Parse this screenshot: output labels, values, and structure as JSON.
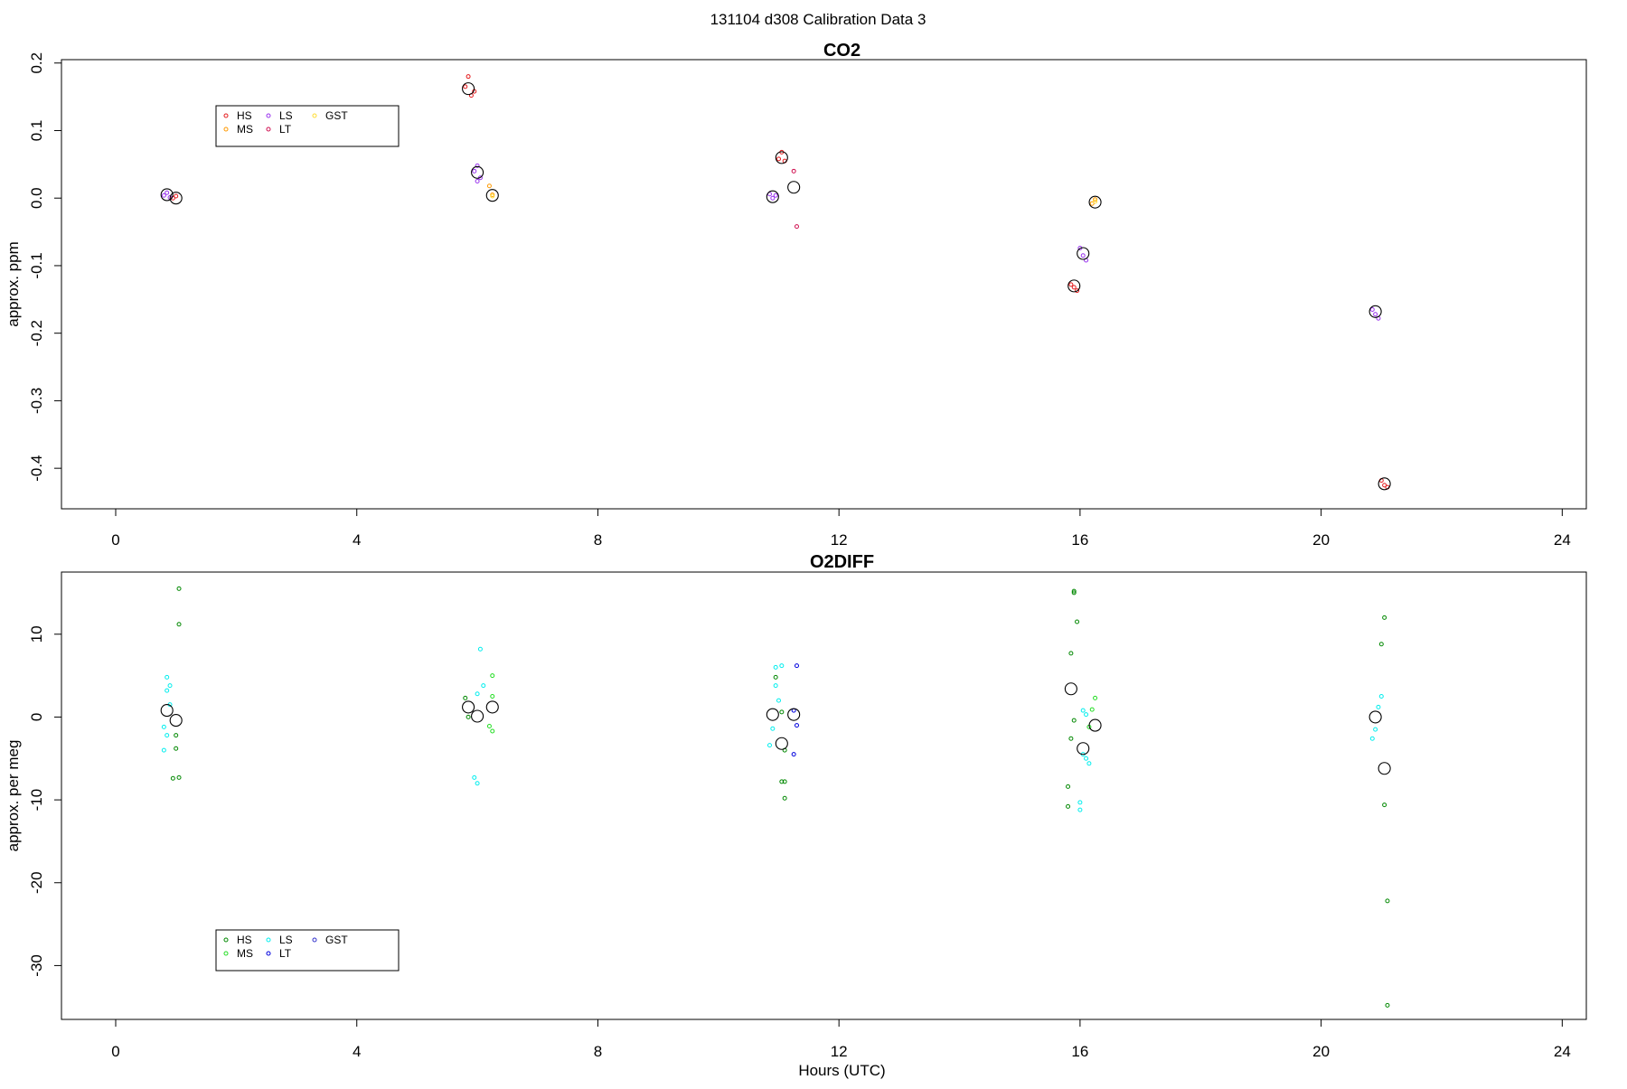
{
  "suptitle": "131104   d308   Calibration Data 3",
  "chart_data": [
    {
      "type": "scatter",
      "title": "CO2",
      "ylabel": "approx. ppm",
      "xlabel": "",
      "xlim": [
        -0.9,
        24.4
      ],
      "ylim": [
        -0.46,
        0.205
      ],
      "xticks": [
        "0",
        "4",
        "8",
        "12",
        "16",
        "20",
        "24"
      ],
      "yticks": [
        "0.2",
        "0.1",
        "0.0",
        "-0.1",
        "-0.2",
        "-0.3",
        "-0.4"
      ],
      "legend": {
        "position": "top-left",
        "entries": [
          {
            "name": "HS",
            "color": "#e41a1c"
          },
          {
            "name": "MS",
            "color": "#ff9900"
          },
          {
            "name": "LS",
            "color": "#9933ee"
          },
          {
            "name": "LT",
            "color": "#d01050"
          },
          {
            "name": "GST",
            "color": "#ffdd33"
          }
        ]
      },
      "series": [
        {
          "name": "HS",
          "color": "#e41a1c",
          "points": [
            [
              1.0,
              0.003
            ],
            [
              0.95,
              0.0
            ],
            [
              5.85,
              0.18
            ],
            [
              5.8,
              0.165
            ],
            [
              5.9,
              0.152
            ],
            [
              5.95,
              0.158
            ],
            [
              11.05,
              0.068
            ],
            [
              11.0,
              0.058
            ],
            [
              11.1,
              0.055
            ],
            [
              15.85,
              -0.128
            ],
            [
              15.9,
              -0.132
            ],
            [
              15.95,
              -0.137
            ],
            [
              21.0,
              -0.418
            ],
            [
              21.05,
              -0.425
            ],
            [
              21.1,
              -0.428
            ]
          ]
        },
        {
          "name": "MS",
          "color": "#ff9900",
          "points": [
            [
              6.2,
              0.018
            ],
            [
              6.25,
              0.005
            ],
            [
              16.25,
              -0.002
            ],
            [
              16.2,
              -0.008
            ]
          ]
        },
        {
          "name": "LS",
          "color": "#9933ee",
          "points": [
            [
              0.85,
              0.008
            ],
            [
              0.8,
              0.004
            ],
            [
              0.9,
              0.001
            ],
            [
              6.0,
              0.048
            ],
            [
              6.05,
              0.03
            ],
            [
              5.95,
              0.04
            ],
            [
              6.0,
              0.025
            ],
            [
              10.85,
              0.006
            ],
            [
              10.9,
              0.0
            ],
            [
              10.95,
              0.004
            ],
            [
              16.0,
              -0.074
            ],
            [
              16.05,
              -0.085
            ],
            [
              16.1,
              -0.092
            ],
            [
              20.85,
              -0.165
            ],
            [
              20.9,
              -0.172
            ],
            [
              20.95,
              -0.178
            ]
          ]
        },
        {
          "name": "LT",
          "color": "#d01050",
          "points": [
            [
              11.25,
              0.04
            ],
            [
              11.3,
              -0.042
            ]
          ]
        },
        {
          "name": "GST",
          "color": "#ffdd33",
          "points": [
            [
              6.25,
              0.003
            ],
            [
              16.25,
              -0.005
            ]
          ]
        },
        {
          "name": "",
          "color": "#000000",
          "marker": "large",
          "points": [
            [
              0.85,
              0.005
            ],
            [
              1.0,
              0.0
            ],
            [
              5.85,
              0.162
            ],
            [
              6.0,
              0.038
            ],
            [
              6.25,
              0.004
            ],
            [
              10.9,
              0.002
            ],
            [
              11.05,
              0.06
            ],
            [
              11.25,
              0.016
            ],
            [
              15.9,
              -0.13
            ],
            [
              16.05,
              -0.082
            ],
            [
              16.25,
              -0.006
            ],
            [
              20.9,
              -0.168
            ],
            [
              21.05,
              -0.423
            ]
          ]
        }
      ]
    },
    {
      "type": "scatter",
      "title": "O2DIFF",
      "ylabel": "approx. per meg",
      "xlabel": "Hours (UTC)",
      "xlim": [
        -0.9,
        24.4
      ],
      "ylim": [
        -36.5,
        17.5
      ],
      "xticks": [
        "0",
        "4",
        "8",
        "12",
        "16",
        "20",
        "24"
      ],
      "yticks": [
        "10",
        "0",
        "-10",
        "-20",
        "-30"
      ],
      "legend": {
        "position": "bottom-left",
        "entries": [
          {
            "name": "HS",
            "color": "#008800"
          },
          {
            "name": "MS",
            "color": "#22dd22"
          },
          {
            "name": "LS",
            "color": "#00eeee"
          },
          {
            "name": "LT",
            "color": "#0000dd"
          },
          {
            "name": "GST",
            "color": "#3333cc"
          }
        ]
      },
      "series": [
        {
          "name": "HS",
          "color": "#008800",
          "points": [
            [
              1.05,
              15.5
            ],
            [
              1.05,
              11.2
            ],
            [
              1.0,
              -2.2
            ],
            [
              1.0,
              -3.8
            ],
            [
              0.95,
              -7.4
            ],
            [
              1.05,
              -7.3
            ],
            [
              5.8,
              2.3
            ],
            [
              5.85,
              0.0
            ],
            [
              10.95,
              4.8
            ],
            [
              11.05,
              0.6
            ],
            [
              11.1,
              -4.0
            ],
            [
              11.05,
              -7.8
            ],
            [
              11.1,
              -7.8
            ],
            [
              11.1,
              -9.8
            ],
            [
              15.9,
              15.2
            ],
            [
              15.9,
              15.0
            ],
            [
              15.95,
              11.5
            ],
            [
              15.85,
              7.7
            ],
            [
              15.9,
              -0.4
            ],
            [
              15.85,
              -2.6
            ],
            [
              15.8,
              -8.4
            ],
            [
              15.8,
              -10.8
            ],
            [
              21.05,
              12.0
            ],
            [
              21.0,
              8.8
            ],
            [
              21.05,
              -10.6
            ],
            [
              21.1,
              -22.2
            ],
            [
              21.1,
              -34.8
            ]
          ]
        },
        {
          "name": "MS",
          "color": "#22dd22",
          "points": [
            [
              6.25,
              5.0
            ],
            [
              6.25,
              2.5
            ],
            [
              6.2,
              -1.1
            ],
            [
              6.25,
              -1.7
            ],
            [
              16.25,
              2.3
            ],
            [
              16.2,
              0.9
            ],
            [
              16.15,
              -1.2
            ]
          ]
        },
        {
          "name": "LS",
          "color": "#00eeee",
          "points": [
            [
              0.85,
              4.8
            ],
            [
              0.9,
              3.8
            ],
            [
              0.85,
              3.2
            ],
            [
              0.9,
              1.5
            ],
            [
              0.8,
              -1.2
            ],
            [
              0.85,
              -2.2
            ],
            [
              0.8,
              -4.0
            ],
            [
              6.05,
              8.2
            ],
            [
              6.1,
              3.8
            ],
            [
              6.0,
              2.8
            ],
            [
              5.95,
              -7.3
            ],
            [
              6.0,
              -8.0
            ],
            [
              10.95,
              6.0
            ],
            [
              11.05,
              6.2
            ],
            [
              10.95,
              3.8
            ],
            [
              11.0,
              2.0
            ],
            [
              10.9,
              -1.4
            ],
            [
              10.85,
              -3.4
            ],
            [
              16.05,
              0.8
            ],
            [
              16.1,
              0.3
            ],
            [
              16.05,
              -4.5
            ],
            [
              16.1,
              -5.0
            ],
            [
              16.15,
              -5.6
            ],
            [
              16.0,
              -10.3
            ],
            [
              16.0,
              -11.2
            ],
            [
              21.0,
              2.5
            ],
            [
              20.95,
              1.2
            ],
            [
              20.9,
              -1.5
            ],
            [
              20.85,
              -2.6
            ]
          ]
        },
        {
          "name": "LT",
          "color": "#0000dd",
          "points": [
            [
              11.3,
              6.2
            ],
            [
              11.25,
              0.8
            ],
            [
              11.3,
              -1.0
            ],
            [
              11.25,
              -4.5
            ]
          ]
        },
        {
          "name": "",
          "color": "#000000",
          "marker": "large",
          "points": [
            [
              0.85,
              0.8
            ],
            [
              1.0,
              -0.4
            ],
            [
              5.85,
              1.2
            ],
            [
              6.0,
              0.1
            ],
            [
              6.25,
              1.2
            ],
            [
              10.9,
              0.3
            ],
            [
              11.05,
              -3.2
            ],
            [
              11.25,
              0.3
            ],
            [
              15.85,
              3.4
            ],
            [
              16.05,
              -3.8
            ],
            [
              16.25,
              -1.0
            ],
            [
              20.9,
              0.0
            ],
            [
              21.05,
              -6.2
            ]
          ]
        }
      ]
    }
  ]
}
